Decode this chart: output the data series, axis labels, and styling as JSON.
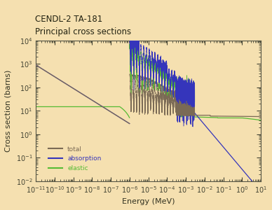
{
  "title_line1": "CENDL-2 TA-181",
  "title_line2": "Principal cross sections",
  "xlabel": "Energy (MeV)",
  "ylabel": "Cross section (barns)",
  "background_color": "#f5e0b0",
  "plot_bg_color": "#f5e0b0",
  "xlim_log": [
    -11,
    1
  ],
  "ylim_log": [
    -2,
    4
  ],
  "color_total": "#7a6a55",
  "color_absorption": "#3535bb",
  "color_elastic": "#55bb33",
  "legend_labels": [
    "total",
    "absorption",
    "elastic"
  ],
  "title_fontsize": 8.5,
  "axis_fontsize": 8,
  "tick_fontsize": 7
}
